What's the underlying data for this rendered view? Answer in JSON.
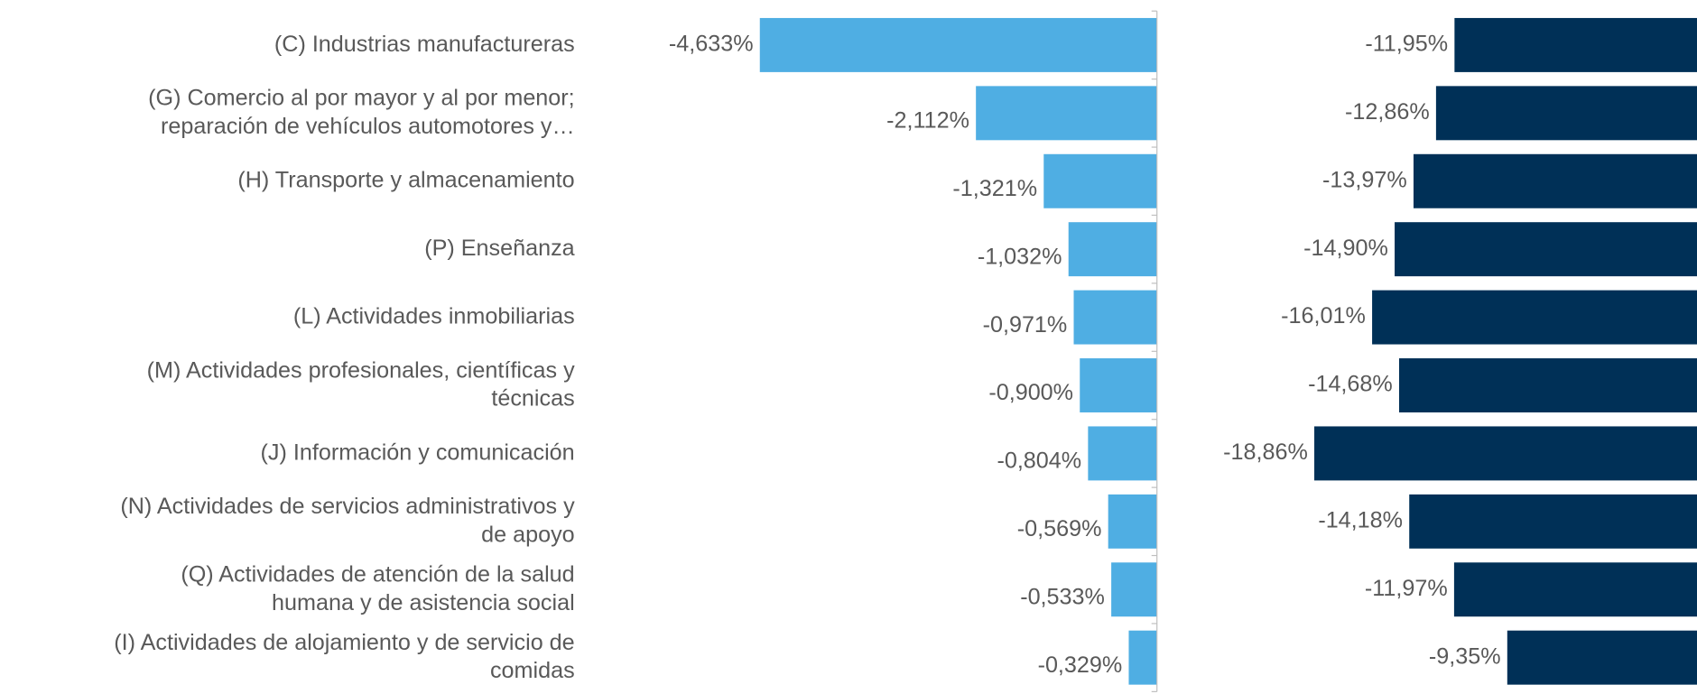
{
  "chart_data": [
    {
      "type": "hbar",
      "categories": [
        "(C) Industrias manufactureras",
        "(G) Comercio al por mayor y al por menor;\nreparación de vehículos automotores y…",
        "(H) Transporte y almacenamiento",
        "(P) Enseñanza",
        "(L) Actividades inmobiliarias",
        "(M) Actividades profesionales, científicas y\ntécnicas",
        "(J) Información y comunicación",
        "(N) Actividades de servicios administrativos y\nde apoyo",
        "(Q) Actividades de atención de la salud\nhumana y de asistencia social",
        "(I) Actividades de alojamiento y de servicio de\ncomidas"
      ],
      "values": [
        -4.633,
        -2.112,
        -1.321,
        -1.032,
        -0.971,
        -0.9,
        -0.804,
        -0.569,
        -0.533,
        -0.329
      ],
      "value_labels": [
        "-4,633%",
        "-2,112%",
        "-1,321%",
        "-1,032%",
        "-0,971%",
        "-0,900%",
        "-0,804%",
        "-0,569%",
        "-0,533%",
        "-0,329%"
      ],
      "color": "#4faee3",
      "xlim": [
        -5,
        0
      ]
    },
    {
      "type": "hbar",
      "values": [
        -11.95,
        -12.86,
        -13.97,
        -14.9,
        -16.01,
        -14.68,
        -18.86,
        -14.18,
        -11.97,
        -9.35
      ],
      "value_labels": [
        "-11,95%",
        "-12,86%",
        "-13,97%",
        "-14,90%",
        "-16,01%",
        "-14,68%",
        "-18,86%",
        "-14,18%",
        "-11,97%",
        "-9,35%"
      ],
      "color": "#003057",
      "xlim": [
        -20,
        0
      ]
    }
  ]
}
